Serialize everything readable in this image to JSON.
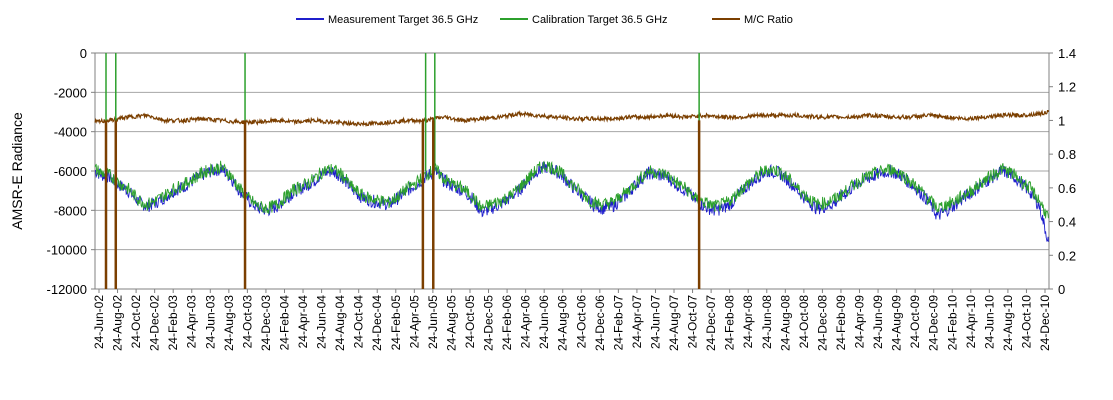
{
  "chart_data": {
    "type": "line",
    "title": "",
    "xlabel": "",
    "ylabel": "AMSR-E Radiance",
    "ylim": [
      -12000,
      0
    ],
    "y_ticks": [
      0,
      -2000,
      -4000,
      -6000,
      -8000,
      -10000,
      -12000
    ],
    "y2label": "",
    "y2lim": [
      0,
      1.4
    ],
    "y2_ticks": [
      1.4,
      1.2,
      1,
      0.8,
      0.6,
      0.4,
      0.2,
      0
    ],
    "x_range": [
      "2002-06-24",
      "2011-01-10"
    ],
    "x_tick_labels": [
      "24-Jun-02",
      "24-Aug-02",
      "24-Oct-02",
      "24-Dec-02",
      "24-Feb-03",
      "24-Apr-03",
      "24-Jun-03",
      "24-Aug-03",
      "24-Oct-03",
      "24-Dec-03",
      "24-Feb-04",
      "24-Apr-04",
      "24-Jun-04",
      "24-Aug-04",
      "24-Oct-04",
      "24-Dec-04",
      "24-Feb-05",
      "24-Apr-05",
      "24-Jun-05",
      "24-Aug-05",
      "24-Oct-05",
      "24-Dec-05",
      "24-Feb-06",
      "24-Apr-06",
      "24-Jun-06",
      "24-Aug-06",
      "24-Oct-06",
      "24-Dec-06",
      "24-Feb-07",
      "24-Apr-07",
      "24-Jun-07",
      "24-Aug-07",
      "24-Oct-07",
      "24-Dec-07",
      "24-Feb-08",
      "24-Apr-08",
      "24-Jun-08",
      "24-Aug-08",
      "24-Oct-08",
      "24-Dec-08",
      "24-Feb-09",
      "24-Apr-09",
      "24-Jun-09",
      "24-Aug-09",
      "24-Oct-09",
      "24-Dec-09",
      "24-Feb-10",
      "24-Apr-10",
      "24-Jun-10",
      "24-Aug-10",
      "24-Oct-10",
      "24-Dec-10"
    ],
    "grid": true,
    "legend_position": "top",
    "series": [
      {
        "name": "Measurement Target 36.5 GHz",
        "axis": "left",
        "color": "#1f1fcc",
        "x": [
          "2002-06-24",
          "2002-07-15",
          "2002-08-10",
          "2002-09-10",
          "2002-10-10",
          "2002-11-10",
          "2002-12-10",
          "2003-01-10",
          "2003-02-10",
          "2003-03-10",
          "2003-04-10",
          "2003-05-10",
          "2003-06-10",
          "2003-07-10",
          "2003-08-10",
          "2003-09-10",
          "2003-10-10",
          "2003-11-10",
          "2003-12-10",
          "2004-01-10",
          "2004-02-10",
          "2004-03-10",
          "2004-04-10",
          "2004-05-10",
          "2004-06-10",
          "2004-07-10",
          "2004-08-10",
          "2004-09-10",
          "2004-10-10",
          "2004-11-10",
          "2004-12-10",
          "2005-01-10",
          "2005-02-10",
          "2005-03-10",
          "2005-04-10",
          "2005-05-10",
          "2005-06-10",
          "2005-07-10",
          "2005-08-10",
          "2005-09-10",
          "2005-10-10",
          "2005-11-10",
          "2005-12-10",
          "2006-01-10",
          "2006-02-10",
          "2006-03-10",
          "2006-04-10",
          "2006-05-10",
          "2006-06-10",
          "2006-07-10",
          "2006-08-10",
          "2006-09-10",
          "2006-10-10",
          "2006-11-10",
          "2006-12-10",
          "2007-01-10",
          "2007-02-10",
          "2007-03-10",
          "2007-04-10",
          "2007-05-10",
          "2007-06-10",
          "2007-07-10",
          "2007-08-10",
          "2007-09-10",
          "2007-10-10",
          "2007-11-10",
          "2007-12-10",
          "2008-01-10",
          "2008-02-10",
          "2008-03-10",
          "2008-04-10",
          "2008-05-10",
          "2008-06-10",
          "2008-07-10",
          "2008-08-10",
          "2008-09-10",
          "2008-10-10",
          "2008-11-10",
          "2008-12-10",
          "2009-01-10",
          "2009-02-10",
          "2009-03-10",
          "2009-04-10",
          "2009-05-10",
          "2009-06-10",
          "2009-07-10",
          "2009-08-10",
          "2009-09-10",
          "2009-10-10",
          "2009-11-10",
          "2009-12-10",
          "2010-01-10",
          "2010-02-10",
          "2010-03-10",
          "2010-04-10",
          "2010-05-10",
          "2010-06-10",
          "2010-07-10",
          "2010-08-10",
          "2010-09-10",
          "2010-10-10",
          "2010-11-10",
          "2010-12-10",
          "2011-01-08"
        ],
        "values": [
          -6000,
          -6200,
          -6300,
          -6700,
          -7000,
          -7500,
          -7800,
          -7600,
          -7300,
          -7000,
          -6800,
          -6500,
          -6200,
          -6000,
          -5900,
          -6300,
          -7000,
          -7500,
          -7900,
          -8000,
          -7800,
          -7400,
          -7000,
          -6800,
          -6500,
          -6100,
          -6000,
          -6300,
          -6900,
          -7300,
          -7500,
          -7600,
          -7700,
          -7400,
          -7000,
          -6700,
          -6300,
          -6000,
          -6500,
          -6800,
          -7000,
          -7400,
          -8100,
          -7900,
          -7700,
          -7400,
          -7000,
          -6500,
          -6000,
          -5800,
          -6000,
          -6400,
          -6900,
          -7300,
          -7700,
          -7900,
          -7800,
          -7500,
          -7000,
          -6500,
          -6100,
          -6200,
          -6300,
          -6700,
          -7000,
          -7500,
          -7800,
          -8000,
          -7900,
          -7600,
          -7000,
          -6600,
          -6200,
          -6000,
          -6100,
          -6500,
          -7000,
          -7500,
          -7900,
          -7800,
          -7600,
          -7200,
          -6800,
          -6500,
          -6300,
          -6100,
          -6000,
          -6200,
          -6600,
          -7000,
          -7500,
          -8300,
          -8000,
          -7700,
          -7300,
          -7000,
          -6600,
          -6300,
          -6000,
          -6200,
          -6600,
          -7100,
          -7800,
          -9600
        ]
      },
      {
        "name": "Calibration Target 36.5 GHz",
        "axis": "left",
        "color": "#2ca02c",
        "x": [
          "2002-06-24",
          "2002-07-15",
          "2002-08-10",
          "2002-09-10",
          "2002-10-10",
          "2002-11-10",
          "2002-12-10",
          "2003-01-10",
          "2003-02-10",
          "2003-03-10",
          "2003-04-10",
          "2003-05-10",
          "2003-06-10",
          "2003-07-10",
          "2003-08-10",
          "2003-09-10",
          "2003-10-10",
          "2003-11-10",
          "2003-12-10",
          "2004-01-10",
          "2004-02-10",
          "2004-03-10",
          "2004-04-10",
          "2004-05-10",
          "2004-06-10",
          "2004-07-10",
          "2004-08-10",
          "2004-09-10",
          "2004-10-10",
          "2004-11-10",
          "2004-12-10",
          "2005-01-10",
          "2005-02-10",
          "2005-03-10",
          "2005-04-10",
          "2005-05-10",
          "2005-06-10",
          "2005-07-10",
          "2005-08-10",
          "2005-09-10",
          "2005-10-10",
          "2005-11-10",
          "2005-12-10",
          "2006-01-10",
          "2006-02-10",
          "2006-03-10",
          "2006-04-10",
          "2006-05-10",
          "2006-06-10",
          "2006-07-10",
          "2006-08-10",
          "2006-09-10",
          "2006-10-10",
          "2006-11-10",
          "2006-12-10",
          "2007-01-10",
          "2007-02-10",
          "2007-03-10",
          "2007-04-10",
          "2007-05-10",
          "2007-06-10",
          "2007-07-10",
          "2007-08-10",
          "2007-09-10",
          "2007-10-10",
          "2007-11-10",
          "2007-12-10",
          "2008-01-10",
          "2008-02-10",
          "2008-03-10",
          "2008-04-10",
          "2008-05-10",
          "2008-06-10",
          "2008-07-10",
          "2008-08-10",
          "2008-09-10",
          "2008-10-10",
          "2008-11-10",
          "2008-12-10",
          "2009-01-10",
          "2009-02-10",
          "2009-03-10",
          "2009-04-10",
          "2009-05-10",
          "2009-06-10",
          "2009-07-10",
          "2009-08-10",
          "2009-09-10",
          "2009-10-10",
          "2009-11-10",
          "2009-12-10",
          "2010-01-10",
          "2010-02-10",
          "2010-03-10",
          "2010-04-10",
          "2010-05-10",
          "2010-06-10",
          "2010-07-10",
          "2010-08-10",
          "2010-09-10",
          "2010-10-10",
          "2010-11-10",
          "2010-12-10",
          "2011-01-08"
        ],
        "values": [
          -5900,
          -6100,
          -6200,
          -6600,
          -6900,
          -7400,
          -7700,
          -7500,
          -7200,
          -6900,
          -6700,
          -6400,
          -6100,
          -5900,
          -5800,
          -6200,
          -6900,
          -7400,
          -7800,
          -7900,
          -7700,
          -7300,
          -6900,
          -6700,
          -6400,
          -6000,
          -5900,
          -6200,
          -6800,
          -7200,
          -7400,
          -7500,
          -7600,
          -7300,
          -6900,
          -6600,
          -6200,
          -5900,
          -6400,
          -6700,
          -6900,
          -7300,
          -7900,
          -7700,
          -7500,
          -7300,
          -6900,
          -6400,
          -5900,
          -5700,
          -5900,
          -6300,
          -6800,
          -7200,
          -7600,
          -7700,
          -7600,
          -7300,
          -6900,
          -6400,
          -6000,
          -6100,
          -6200,
          -6600,
          -6900,
          -7400,
          -7600,
          -7800,
          -7700,
          -7400,
          -6900,
          -6500,
          -6100,
          -5900,
          -6000,
          -6400,
          -6900,
          -7300,
          -7700,
          -7600,
          -7400,
          -7100,
          -6700,
          -6400,
          -6200,
          -6000,
          -5900,
          -6100,
          -6500,
          -6900,
          -7400,
          -7900,
          -7700,
          -7500,
          -7200,
          -6900,
          -6500,
          -6200,
          -5900,
          -6100,
          -6500,
          -6900,
          -7500,
          -8400
        ]
      },
      {
        "name": "M/C Ratio",
        "axis": "right",
        "color": "#7b3f00",
        "x": [
          "2002-06-24",
          "2002-08-10",
          "2002-10-10",
          "2002-12-10",
          "2003-02-10",
          "2003-04-10",
          "2003-06-10",
          "2003-08-10",
          "2003-10-10",
          "2003-12-10",
          "2004-02-10",
          "2004-04-10",
          "2004-06-10",
          "2004-08-10",
          "2004-10-10",
          "2004-12-10",
          "2005-02-10",
          "2005-04-10",
          "2005-06-10",
          "2005-08-10",
          "2005-10-10",
          "2005-12-10",
          "2006-02-10",
          "2006-04-10",
          "2006-06-10",
          "2006-08-10",
          "2006-10-10",
          "2006-12-10",
          "2007-02-10",
          "2007-04-10",
          "2007-06-10",
          "2007-08-10",
          "2007-10-10",
          "2007-12-10",
          "2008-02-10",
          "2008-04-10",
          "2008-06-10",
          "2008-08-10",
          "2008-10-10",
          "2008-12-10",
          "2009-02-10",
          "2009-04-10",
          "2009-06-10",
          "2009-08-10",
          "2009-10-10",
          "2009-12-10",
          "2010-02-10",
          "2010-04-10",
          "2010-06-10",
          "2010-08-10",
          "2010-10-10",
          "2010-12-10",
          "2011-01-08"
        ],
        "values": [
          0.99,
          1.0,
          1.02,
          1.03,
          1.0,
          1.0,
          1.01,
          1.0,
          0.99,
          0.99,
          1.0,
          0.99,
          1.0,
          0.99,
          0.98,
          0.98,
          0.99,
          1.0,
          1.0,
          1.02,
          1.0,
          1.01,
          1.02,
          1.04,
          1.03,
          1.02,
          1.01,
          1.01,
          1.01,
          1.02,
          1.02,
          1.03,
          1.02,
          1.03,
          1.02,
          1.02,
          1.03,
          1.03,
          1.03,
          1.02,
          1.02,
          1.02,
          1.03,
          1.02,
          1.02,
          1.03,
          1.02,
          1.01,
          1.02,
          1.03,
          1.03,
          1.04,
          1.05
        ]
      }
    ],
    "spikes": [
      {
        "series": "Calibration Target 36.5 GHz",
        "x": "2002-07-30",
        "value": 0
      },
      {
        "series": "Calibration Target 36.5 GHz",
        "x": "2002-08-31",
        "value": 0
      },
      {
        "series": "Calibration Target 36.5 GHz",
        "x": "2003-10-28",
        "value": 0
      },
      {
        "series": "Calibration Target 36.5 GHz",
        "x": "2005-06-10",
        "value": 0
      },
      {
        "series": "Calibration Target 36.5 GHz",
        "x": "2005-07-10",
        "value": 0
      },
      {
        "series": "Calibration Target 36.5 GHz",
        "x": "2007-11-22",
        "value": 0
      },
      {
        "series": "M/C Ratio",
        "x": "2002-07-30",
        "value": 0
      },
      {
        "series": "M/C Ratio",
        "x": "2002-08-31",
        "value": 0
      },
      {
        "series": "M/C Ratio",
        "x": "2003-10-28",
        "value": 0
      },
      {
        "series": "M/C Ratio",
        "x": "2005-06-01",
        "value": 0
      },
      {
        "series": "M/C Ratio",
        "x": "2005-07-05",
        "value": 0
      },
      {
        "series": "M/C Ratio",
        "x": "2007-11-22",
        "value": 0
      }
    ]
  }
}
